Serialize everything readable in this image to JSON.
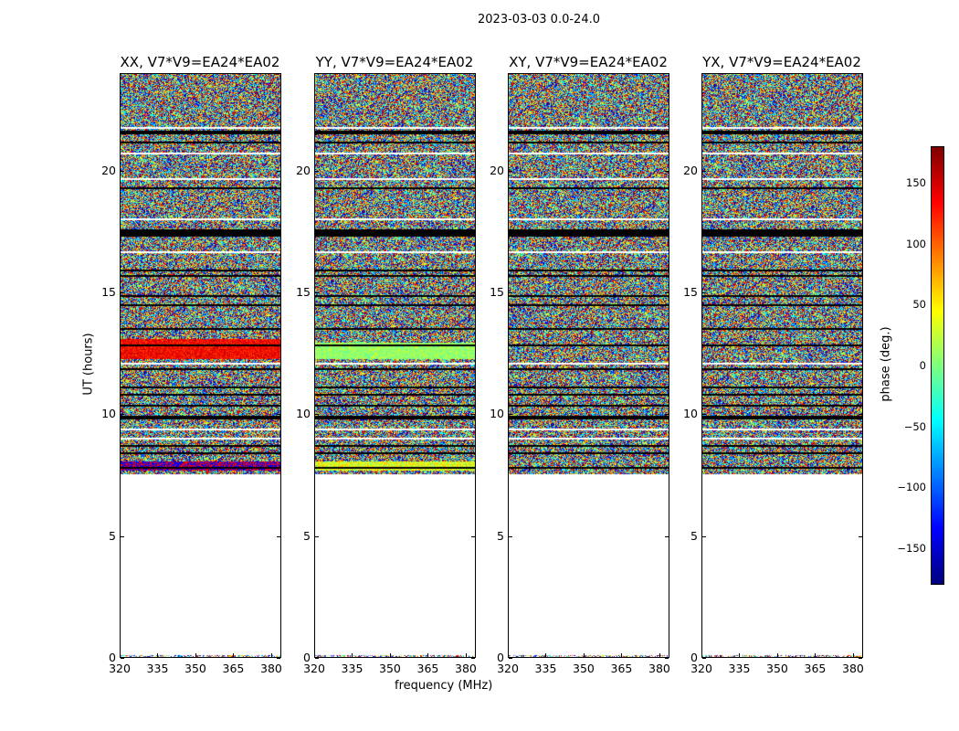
{
  "chart_data": {
    "type": "heatmap",
    "suptitle": "2023-03-03 0.0-24.0",
    "panels": [
      {
        "id": "xx",
        "title": "XX, V7*V9=EA24*EA02"
      },
      {
        "id": "yy",
        "title": "YY, V7*V9=EA24*EA02"
      },
      {
        "id": "xy",
        "title": "XY, V7*V9=EA24*EA02"
      },
      {
        "id": "yx",
        "title": "YX, V7*V9=EA24*EA02"
      }
    ],
    "xlabel": "frequency (MHz)",
    "ylabel": "UT (hours)",
    "xlim": [
      320,
      384
    ],
    "ylim": [
      0,
      24
    ],
    "xticks": [
      "320",
      "335",
      "350",
      "365",
      "380"
    ],
    "xtick_values": [
      320,
      335,
      350,
      365,
      380
    ],
    "yticks": [
      "0",
      "5",
      "10",
      "15",
      "20"
    ],
    "ytick_values": [
      0,
      5,
      10,
      15,
      20
    ],
    "data_time_range_hours": [
      7.6,
      24
    ],
    "flagged_bands_hours": [
      [
        17.3,
        17.6
      ],
      [
        21.55,
        21.65
      ],
      [
        9.85,
        9.95
      ],
      [
        14.45,
        14.55
      ]
    ],
    "colorbar": {
      "label": "phase (deg.)",
      "range": [
        -180,
        180
      ],
      "colormap": "jet",
      "ticks": [
        "150",
        "100",
        "50",
        "0",
        "−50",
        "−100",
        "−150"
      ],
      "tick_values": [
        150,
        100,
        50,
        0,
        -50,
        -100,
        -150
      ]
    }
  }
}
